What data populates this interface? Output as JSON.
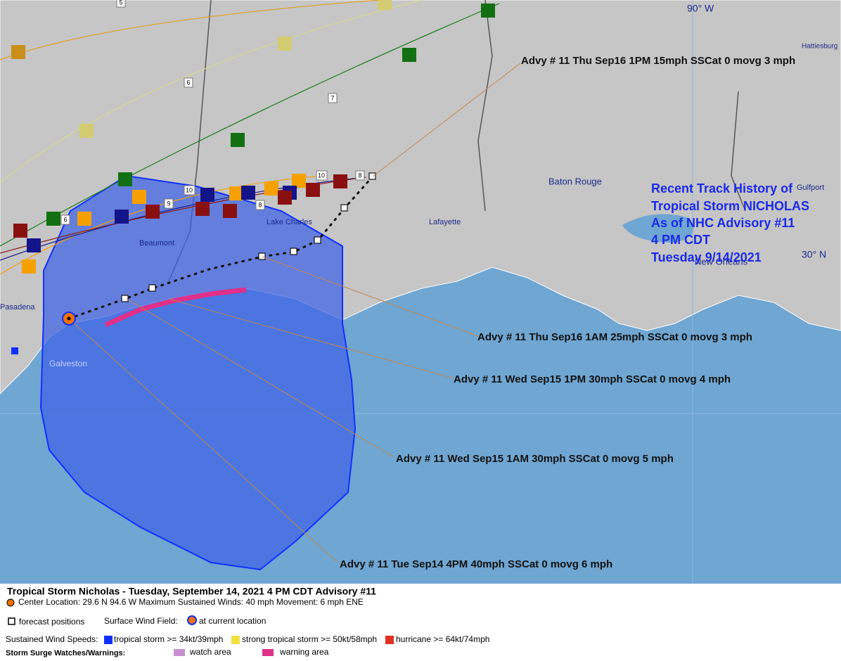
{
  "map": {
    "longitude": "90° W",
    "latitude": "30° N",
    "cities": [
      "Hattiesburg",
      "Baton Rouge",
      "Lafayette",
      "Lake Charles",
      "Beaumont",
      "Galveston",
      "Pasadena",
      "New Orleans",
      "Gulfport"
    ]
  },
  "history_title": [
    "Recent Track History of",
    "Tropical Storm NICHOLAS",
    "As of NHC Advisory #11",
    "4 PM CDT",
    "Tuesday 9/14/2021"
  ],
  "forecast_labels": [
    "Advy # 11 Thu Sep16 1PM  15mph SSCat 0 movg 3 mph",
    "Advy # 11 Thu Sep16 1AM  25mph SSCat 0 movg 3 mph",
    "Advy # 11 Wed Sep15 1PM  30mph SSCat 0 movg 4 mph",
    "Advy # 11 Wed Sep15 1AM  30mph SSCat 0 movg 5 mph",
    "Advy # 11 Tue Sep14 4PM  40mph SSCat 0 movg 6 mph"
  ],
  "track_numbers": [
    "5",
    "6",
    "7",
    "8",
    "9",
    "10",
    "10",
    "8",
    "6"
  ],
  "legend": {
    "title": "Tropical Storm Nicholas  -  Tuesday, September 14, 2021  4 PM CDT   Advisory #11",
    "info": "Center Location: 29.6 N  94.6 W   Maximum Sustained Winds: 40 mph   Movement: 6 mph ENE",
    "forecast_positions": "forecast positions",
    "wind_field": "Surface Wind Field:",
    "current_location": "at current location",
    "wind_speeds": "Sustained Wind Speeds:",
    "tropical_storm": "tropical storm >= 34kt/39mph",
    "strong_tropical_storm": "strong tropical storm >= 50kt/58mph",
    "hurricane": "hurricane >= 64kt/74mph",
    "surge": "Storm Surge Watches/Warnings:",
    "watch_area": "watch area",
    "warning_area": "warning area"
  }
}
